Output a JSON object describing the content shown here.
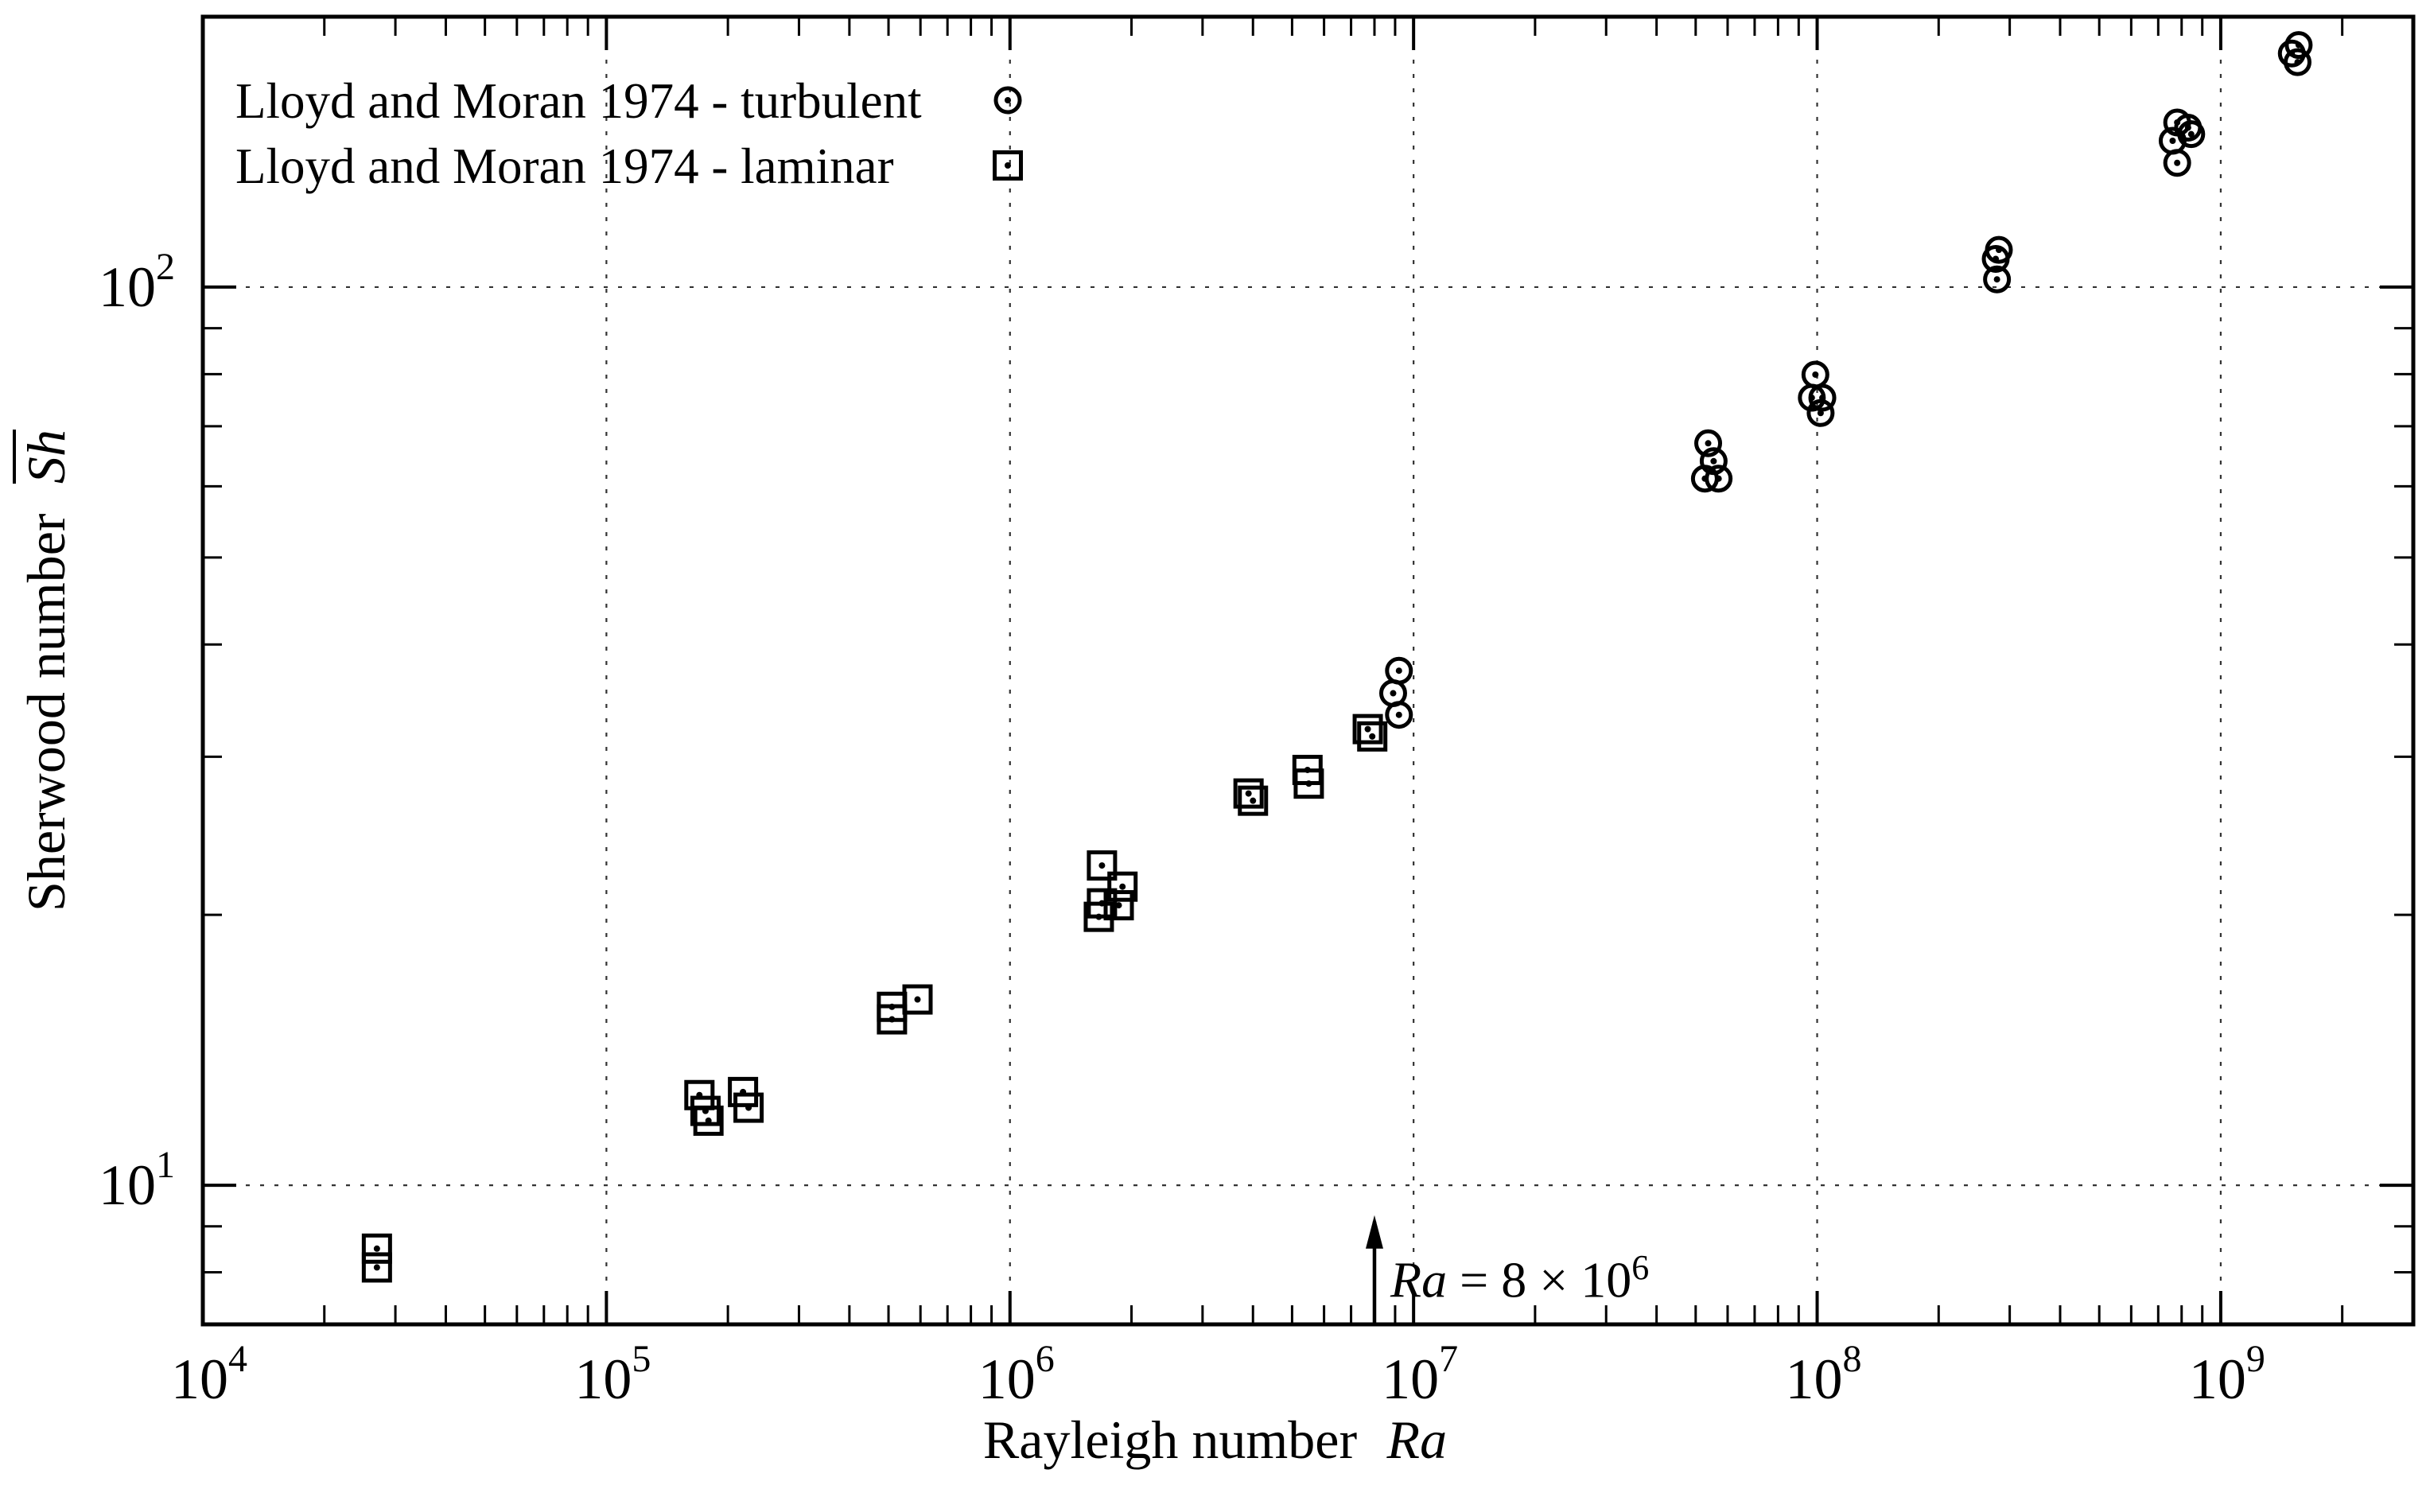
{
  "figure": {
    "background": "#ffffff",
    "foreground": "#000000",
    "grid_color": "#333333"
  },
  "legend": {
    "items": [
      {
        "label": "Lloyd and Moran 1974 - turbulent",
        "marker": "circle-dot"
      },
      {
        "label": "Lloyd and Moran 1974 - laminar",
        "marker": "square-dot"
      }
    ]
  },
  "chart_data": {
    "type": "scatter",
    "title": "",
    "x_axis": {
      "label_prefix": "Rayleigh number",
      "label_symbol": "Ra",
      "scale": "log",
      "min": 10000,
      "max": 3000000000,
      "ticks": [
        {
          "base": "10",
          "exp": "4",
          "value": 10000
        },
        {
          "base": "10",
          "exp": "5",
          "value": 100000
        },
        {
          "base": "10",
          "exp": "6",
          "value": 1000000
        },
        {
          "base": "10",
          "exp": "7",
          "value": 10000000
        },
        {
          "base": "10",
          "exp": "8",
          "value": 100000000
        },
        {
          "base": "10",
          "exp": "9",
          "value": 1000000000
        }
      ]
    },
    "y_axis": {
      "label_prefix": "Sherwood number",
      "label_symbol": "Sh",
      "symbol_overline": true,
      "scale": "log",
      "min": 7,
      "max": 200,
      "ticks": [
        {
          "base": "10",
          "exp": "1",
          "value": 10
        },
        {
          "base": "10",
          "exp": "2",
          "value": 100
        }
      ]
    },
    "grid": {
      "style": "dotted",
      "major_x": true,
      "major_y": true
    },
    "series": [
      {
        "name": "Lloyd and Moran 1974 - turbulent",
        "marker": "circle-dot",
        "points": [
          [
            8900000,
            35.3
          ],
          [
            9200000,
            37.4
          ],
          [
            9200000,
            33.4
          ],
          [
            52700000,
            61.2
          ],
          [
            53700000,
            67.0
          ],
          [
            55400000,
            64.0
          ],
          [
            57000000,
            61.2
          ],
          [
            97000000,
            75.3
          ],
          [
            99000000,
            79.9
          ],
          [
            102000000,
            72.4
          ],
          [
            103000000,
            75.3
          ],
          [
            277000000,
            107.5
          ],
          [
            279000000,
            102.0
          ],
          [
            282000000,
            110.0
          ],
          [
            760000000,
            145.5
          ],
          [
            780000000,
            152.5
          ],
          [
            780000000,
            137.5
          ],
          [
            830000000,
            150.5
          ],
          [
            845000000,
            148.0
          ],
          [
            1500000000,
            182.0
          ],
          [
            1550000000,
            178.0
          ],
          [
            1560000000,
            186.0
          ]
        ]
      },
      {
        "name": "Lloyd and Moran 1974 - laminar",
        "marker": "square-dot",
        "points": [
          [
            27000,
            8.5
          ],
          [
            27000,
            8.1
          ],
          [
            170000,
            12.6
          ],
          [
            176000,
            12.1
          ],
          [
            179000,
            11.8
          ],
          [
            218000,
            12.7
          ],
          [
            225000,
            12.2
          ],
          [
            510000,
            15.8
          ],
          [
            510000,
            15.3
          ],
          [
            590000,
            16.1
          ],
          [
            1660000,
            19.9
          ],
          [
            1690000,
            22.7
          ],
          [
            1690000,
            20.6
          ],
          [
            1860000,
            20.5
          ],
          [
            1900000,
            21.5
          ],
          [
            3900000,
            27.3
          ],
          [
            4000000,
            26.8
          ],
          [
            5460000,
            29.0
          ],
          [
            5500000,
            28.0
          ],
          [
            7700000,
            32.2
          ],
          [
            7900000,
            31.6
          ]
        ]
      }
    ],
    "annotation": {
      "symbol": "Ra",
      "equals_text": " = 8 × 10",
      "exponent": "6",
      "arrow_x": 8000000,
      "arrow_y_from": 7,
      "arrow_y_to": 9
    }
  }
}
